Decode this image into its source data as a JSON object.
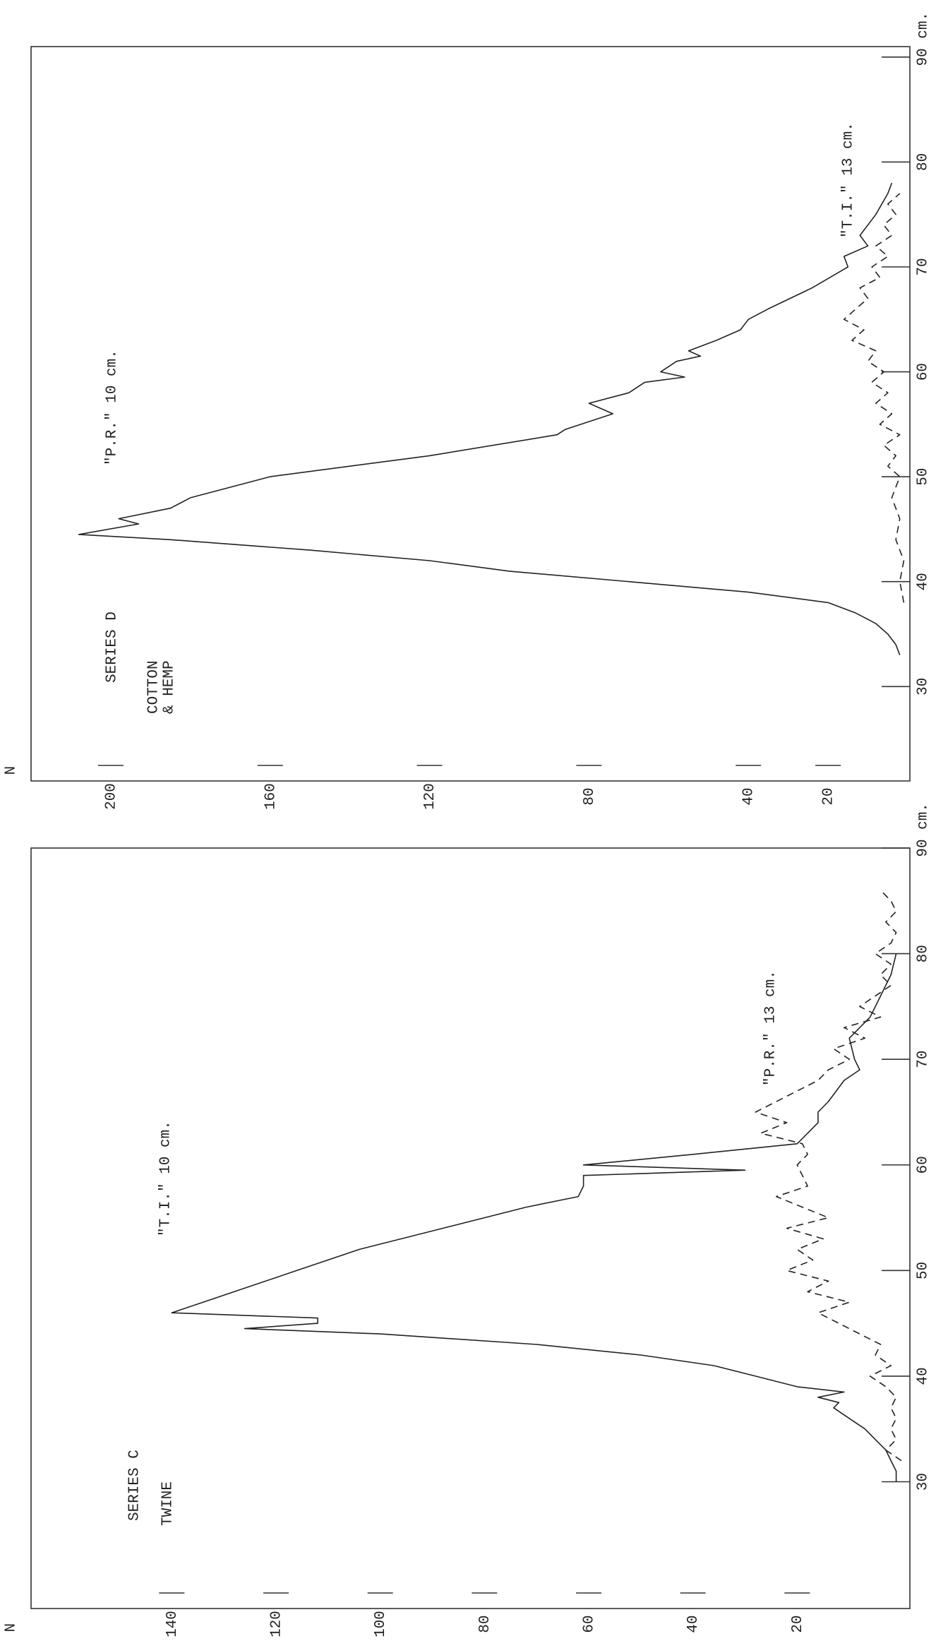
{
  "chart_data": [
    {
      "type": "line",
      "title": "SERIES C",
      "subtitle": [
        "TWINE"
      ],
      "xlabel": "cm.",
      "ylabel": "N",
      "xlim": [
        18,
        90
      ],
      "xticks": [
        30,
        40,
        50,
        60,
        70,
        80,
        90
      ],
      "ylim": [
        0,
        167
      ],
      "yticks": [
        20,
        40,
        60,
        80,
        100,
        120,
        140
      ],
      "series": [
        {
          "name": "\"T.I.\" 10 cm.",
          "color": "#222222",
          "dashed": false,
          "x": [
            30,
            31,
            32,
            33,
            34,
            35,
            36,
            37,
            37.5,
            38,
            38.5,
            39,
            40,
            41,
            42,
            43,
            44,
            44.5,
            45,
            45.5,
            46,
            47,
            48,
            50,
            52,
            54,
            56,
            57,
            58,
            59,
            59.5,
            60,
            61,
            62,
            63,
            64,
            65,
            66,
            68,
            69,
            70,
            72,
            74,
            76,
            78,
            80
          ],
          "values": [
            1,
            1,
            2,
            3,
            5,
            7,
            10,
            13,
            12,
            16,
            11,
            20,
            28,
            36,
            50,
            70,
            100,
            126,
            112,
            112,
            140,
            134,
            128,
            116,
            104,
            88,
            72,
            62,
            61,
            61,
            30,
            61,
            40,
            20,
            18,
            16,
            16,
            14,
            11,
            8,
            9,
            10,
            6,
            4,
            2,
            1
          ]
        },
        {
          "name": "\"P.R.\" 13 cm.",
          "color": "#222222",
          "dashed": true,
          "x": [
            32,
            33,
            34,
            35,
            36,
            37,
            38,
            39,
            40,
            41,
            42,
            43,
            44,
            45,
            46,
            47,
            48,
            49,
            50,
            51,
            52,
            53,
            54,
            55,
            56,
            57,
            58,
            59,
            60,
            61,
            62,
            63,
            64,
            65,
            66,
            67,
            68,
            69,
            70,
            71,
            72,
            73,
            74,
            75,
            76,
            77,
            78,
            79,
            80,
            81,
            82,
            83,
            84,
            85,
            86
          ],
          "values": [
            0,
            3,
            1,
            2,
            1,
            2,
            1,
            3,
            6,
            2,
            5,
            4,
            8,
            12,
            16,
            10,
            18,
            14,
            22,
            17,
            20,
            15,
            22,
            14,
            19,
            24,
            18,
            19,
            20,
            18,
            19,
            27,
            22,
            28,
            24,
            20,
            16,
            14,
            10,
            13,
            7,
            11,
            4,
            8,
            5,
            2,
            4,
            2,
            5,
            2,
            1,
            3,
            1,
            2,
            4
          ]
        }
      ]
    },
    {
      "type": "line",
      "title": "SERIES D",
      "subtitle": [
        "COTTON",
        "& HEMP"
      ],
      "xlabel": "cm.",
      "ylabel": "N",
      "xlim": [
        21,
        91
      ],
      "xticks": [
        30,
        40,
        50,
        60,
        70,
        80,
        90
      ],
      "ylim": [
        0,
        220
      ],
      "yticks": [
        20,
        40,
        80,
        120,
        160,
        200
      ],
      "series": [
        {
          "name": "\"P.R.\" 10 cm.",
          "color": "#222222",
          "dashed": false,
          "x": [
            33,
            34,
            35,
            36,
            37,
            38,
            39,
            40,
            41,
            42,
            43,
            44,
            44.5,
            45.5,
            46,
            47,
            48,
            50,
            52,
            54,
            54.5,
            56,
            57,
            58,
            59,
            59.5,
            60,
            61,
            61.5,
            62,
            63,
            64,
            65,
            66,
            68,
            70,
            71,
            72,
            73,
            75,
            77,
            78
          ],
          "values": [
            2,
            3,
            5,
            8,
            13,
            20,
            40,
            70,
            100,
            120,
            150,
            185,
            208,
            193,
            198,
            185,
            180,
            160,
            120,
            88,
            86,
            74,
            80,
            70,
            66,
            56,
            62,
            58,
            52,
            55,
            48,
            42,
            40,
            35,
            24,
            15,
            16,
            10,
            12,
            8,
            5,
            4
          ]
        },
        {
          "name": "\"T.I.\" 13 cm.",
          "color": "#222222",
          "dashed": true,
          "x": [
            38,
            40,
            42,
            44,
            46,
            48,
            50,
            51,
            52,
            53,
            54,
            55,
            56,
            57,
            58,
            59,
            60,
            61,
            62,
            63,
            64,
            65,
            66,
            67,
            68,
            69,
            70,
            71,
            72,
            73,
            74,
            75,
            76,
            77
          ],
          "values": [
            1,
            2,
            1,
            3,
            2,
            4,
            2,
            5,
            3,
            6,
            2,
            7,
            4,
            8,
            5,
            9,
            6,
            10,
            8,
            14,
            11,
            16,
            13,
            10,
            12,
            7,
            9,
            5,
            8,
            4,
            6,
            3,
            5,
            2
          ]
        }
      ]
    }
  ]
}
